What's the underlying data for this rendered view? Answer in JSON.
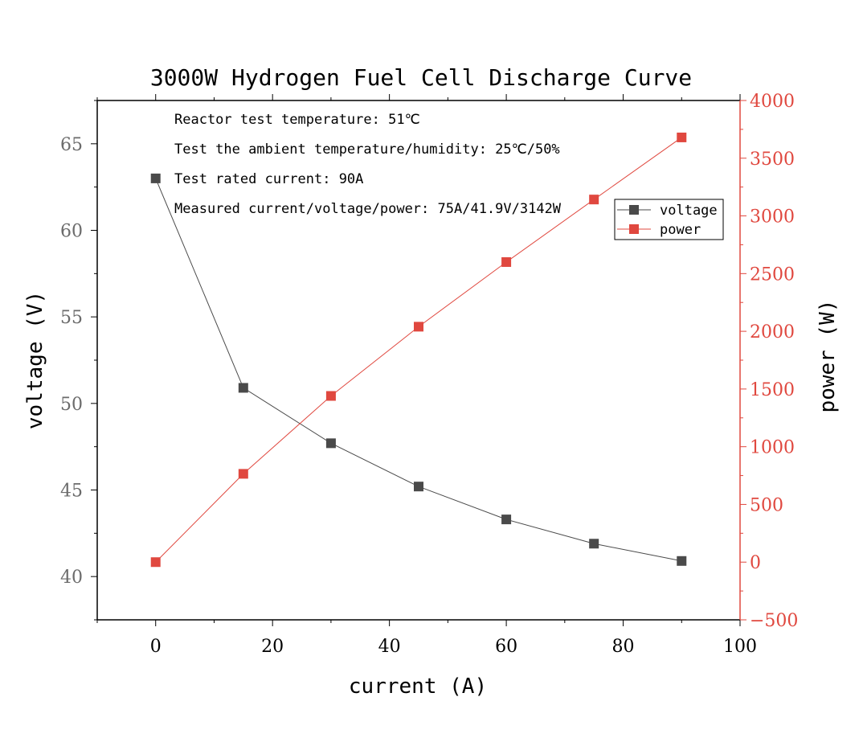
{
  "chart_data": {
    "type": "line",
    "title": "3000W Hydrogen Fuel Cell Discharge Curve",
    "xlabel": "current (A)",
    "ylabel_left": "voltage (V)",
    "ylabel_right": "power (W)",
    "xlim": [
      -10,
      100
    ],
    "ylim_left": [
      37.5,
      67.5
    ],
    "ylim_right": [
      -500,
      4000
    ],
    "xticks": [
      0,
      20,
      40,
      60,
      80,
      100
    ],
    "yticks_left": [
      40,
      45,
      50,
      55,
      60,
      65
    ],
    "yticks_right": [
      -500,
      0,
      500,
      1000,
      1500,
      2000,
      2500,
      3000,
      3500,
      4000
    ],
    "x": [
      0,
      15,
      30,
      45,
      60,
      75,
      90
    ],
    "series": [
      {
        "name": "voltage",
        "axis": "left",
        "color": "#4a4a4a",
        "values": [
          63.0,
          50.9,
          47.7,
          45.2,
          43.3,
          41.9,
          40.9
        ]
      },
      {
        "name": "power",
        "axis": "right",
        "color": "#e0483f",
        "values": [
          0,
          765,
          1440,
          2040,
          2600,
          3142,
          3680
        ]
      }
    ],
    "legend_placement": "top-right",
    "grid": false,
    "annotations": [
      "Reactor test temperature: 51℃",
      "Test the ambient temperature/humidity: 25℃/50%",
      "Test rated current: 90A",
      "Measured current/voltage/power: 75A/41.9V/3142W"
    ],
    "colors": {
      "left_axis_text": "#6b6b6b",
      "right_axis": "#e0483f"
    }
  }
}
